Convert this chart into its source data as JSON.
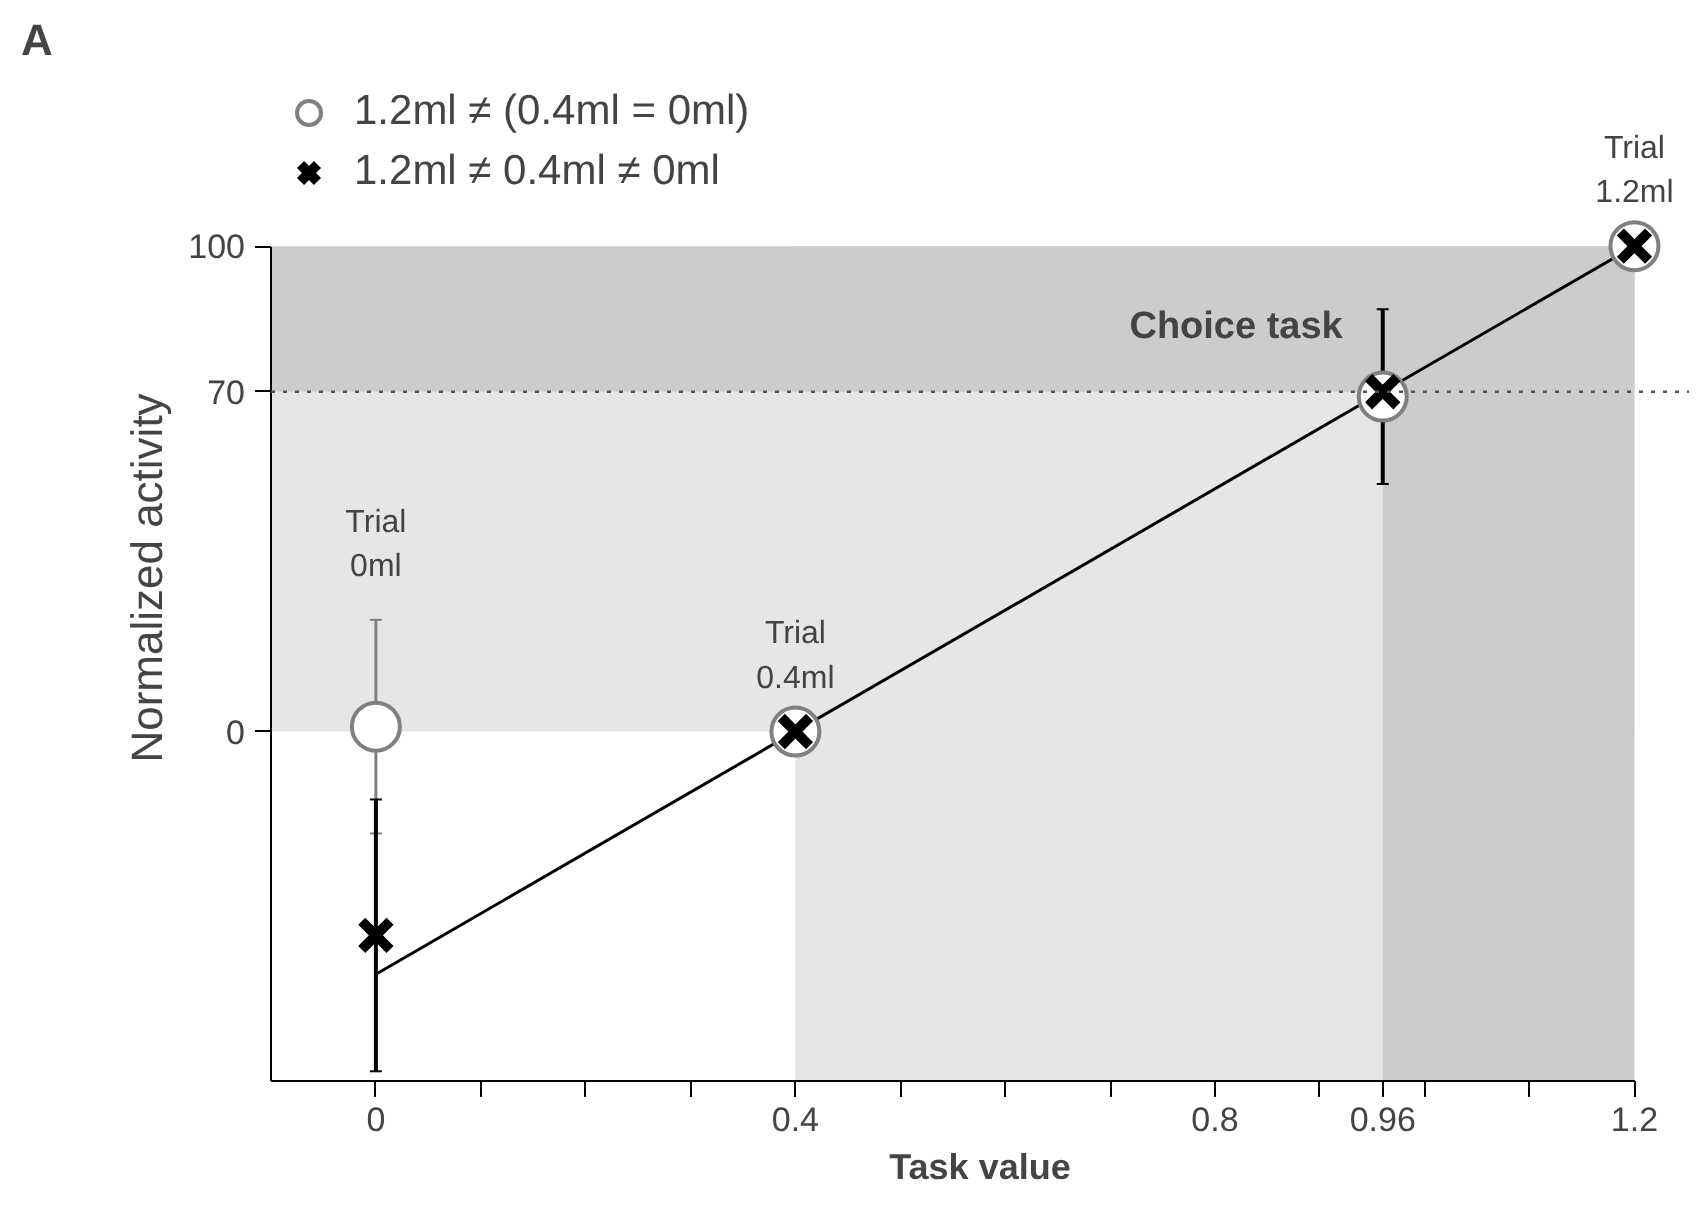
{
  "chart_data": {
    "type": "scatter",
    "xlabel": "Task value",
    "ylabel": "Normalized activity",
    "title": "A",
    "xlim": [
      -0.1,
      1.2
    ],
    "ylim": [
      -72,
      100
    ],
    "xticks": [
      0,
      {
        "value": 0.1,
        "label": null
      },
      {
        "value": 0.2,
        "label": null
      },
      {
        "value": 0.3,
        "label": null
      },
      0.4,
      {
        "value": 0.5,
        "label": null
      },
      {
        "value": 0.6,
        "label": null
      },
      {
        "value": 0.7,
        "label": null
      },
      0.8,
      {
        "value": 0.9,
        "label": null
      },
      0.96,
      {
        "value": 1.0,
        "label": null
      },
      {
        "value": 1.1,
        "label": null
      },
      1.2
    ],
    "yticks": [
      0,
      70,
      100
    ],
    "grid": false,
    "legend": "top left",
    "bands": [
      {
        "axis": "y",
        "from": 0,
        "to": 70,
        "color": "#e6e6e6"
      },
      {
        "axis": "x",
        "from": 0.4,
        "to": 0.96,
        "color": "#e6e6e6"
      },
      {
        "axis": "y",
        "from": 70,
        "to": 100,
        "color": "#cccccc"
      },
      {
        "axis": "x",
        "from": 0.96,
        "to": 1.2,
        "color": "#cccccc"
      }
    ],
    "ref_lines": [
      {
        "axis": "y",
        "value": 70,
        "line_style": "dotted",
        "color": "#555555"
      }
    ],
    "series": [
      {
        "type": "line",
        "color": "#000000",
        "x": [
          0,
          1.2
        ],
        "values": [
          -50,
          100
        ],
        "marker": "none"
      },
      {
        "name": "1.2ml ≠ (0.4ml = 0ml)",
        "color": "#808080",
        "marker": "circle",
        "x": [
          0,
          0.4,
          0.96,
          1.2
        ],
        "values": [
          1,
          0,
          69,
          100
        ],
        "errors": [
          [
            -21,
            23
          ],
          null,
          null,
          null
        ]
      },
      {
        "name": "1.2ml ≠ 0.4ml ≠ 0ml",
        "color": "#000000",
        "marker": "cross",
        "x": [
          0,
          0.4,
          0.96,
          1.2
        ],
        "values": [
          -42,
          0,
          70,
          100
        ],
        "errors": [
          [
            -70,
            -14
          ],
          null,
          [
            51,
            87
          ],
          null
        ]
      }
    ],
    "annotations": [
      {
        "text": "Trial\n0ml",
        "x": 0,
        "y": 23
      },
      {
        "text": "Trial\n0.4ml",
        "x": 0.4,
        "y": 0
      },
      {
        "text": "Choice task",
        "x": 0.96,
        "y": 70
      },
      {
        "text": "Trial\n1.2ml",
        "x": 1.2,
        "y": 100
      }
    ]
  }
}
